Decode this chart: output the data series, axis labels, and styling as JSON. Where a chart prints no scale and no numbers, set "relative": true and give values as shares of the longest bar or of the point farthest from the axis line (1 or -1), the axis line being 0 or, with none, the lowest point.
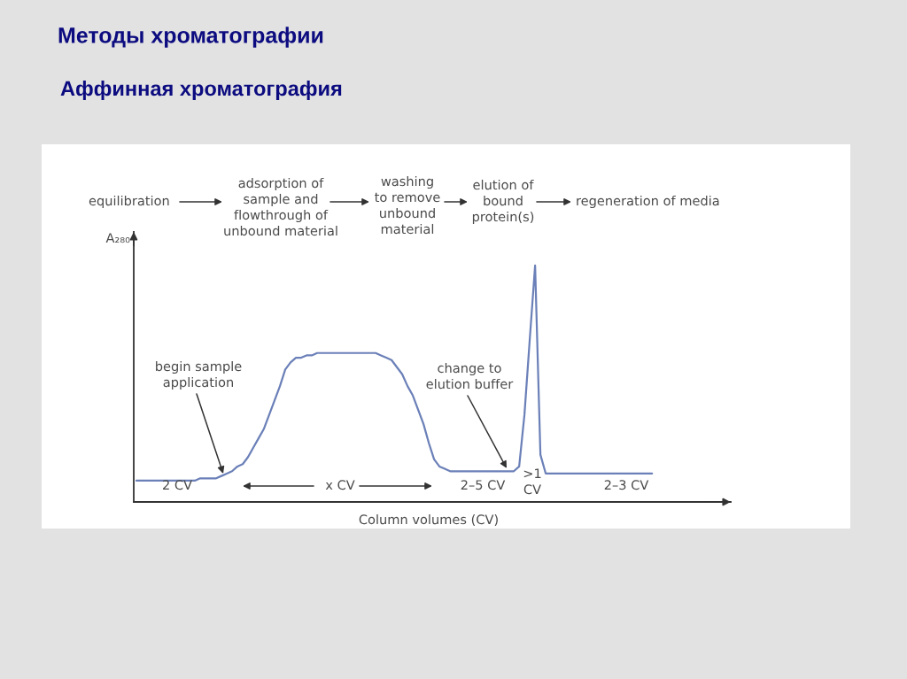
{
  "chart_data": {
    "type": "line",
    "title": "Методы хроматографии",
    "subtitle": "Аффинная хроматография",
    "xlabel": "Column volumes (CV)",
    "ylabel": "A₂₈₀",
    "relative": true,
    "line_style": "solid",
    "categories": [
      null,
      null,
      null,
      null,
      null,
      null,
      null,
      null,
      null,
      null,
      null,
      null,
      null,
      null,
      null,
      null,
      null,
      null,
      null,
      null,
      null,
      null,
      null,
      null,
      null,
      null,
      null,
      null,
      null,
      null,
      null,
      null,
      null,
      null,
      null,
      null,
      null,
      null,
      null,
      null,
      null,
      null,
      null,
      null,
      null,
      null,
      null,
      null,
      null,
      null,
      null,
      null,
      null,
      null,
      null,
      null,
      null,
      null,
      null,
      null,
      null,
      null,
      null,
      null,
      null,
      null,
      null,
      null,
      null,
      null,
      null,
      null,
      null,
      null,
      null,
      null,
      null,
      null,
      null,
      null,
      null,
      null,
      null,
      null,
      null,
      null,
      null,
      null,
      null,
      null,
      null,
      null,
      null,
      null,
      null,
      null,
      null,
      null
    ],
    "series": [
      {
        "color": "#6b80b8",
        "values": [
          0.09,
          0.09,
          0.09,
          0.09,
          0.09,
          0.09,
          0.09,
          0.09,
          0.09,
          0.09,
          0.09,
          0.09,
          0.1,
          0.1,
          0.1,
          0.1,
          0.11,
          0.12,
          0.13,
          0.15,
          0.16,
          0.19,
          0.23,
          0.27,
          0.31,
          0.37,
          0.43,
          0.49,
          0.56,
          0.59,
          0.61,
          0.61,
          0.62,
          0.62,
          0.63,
          0.63,
          0.63,
          0.63,
          0.63,
          0.63,
          0.63,
          0.63,
          0.63,
          0.63,
          0.63,
          0.63,
          0.62,
          0.61,
          0.6,
          0.57,
          0.54,
          0.49,
          0.45,
          0.39,
          0.33,
          0.25,
          0.18,
          0.15,
          0.14,
          0.13,
          0.13,
          0.13,
          0.13,
          0.13,
          0.13,
          0.13,
          0.13,
          0.13,
          0.13,
          0.13,
          0.13,
          0.13,
          0.15,
          0.37,
          0.69,
          1,
          0.2,
          0.12,
          0.12,
          0.12,
          0.12,
          0.12,
          0.12,
          0.12,
          0.12,
          0.12,
          0.12,
          0.12,
          0.12,
          0.12,
          0.12,
          0.12,
          0.12,
          0.12,
          0.12,
          0.12,
          0.12,
          0.12
        ]
      }
    ],
    "annotations": [
      "equilibration",
      "adsorption of\nsample and\nflowthrough of\nunbound material",
      "washing\nto remove\nunbound\nmaterial",
      "elution of\nbound\nprotein(s)",
      "regeneration of media",
      "begin sample\napplication",
      "change to\nelution buffer",
      "2 CV",
      "x CV",
      "2–5 CV",
      ">1\nCV",
      "2–3 CV"
    ]
  }
}
